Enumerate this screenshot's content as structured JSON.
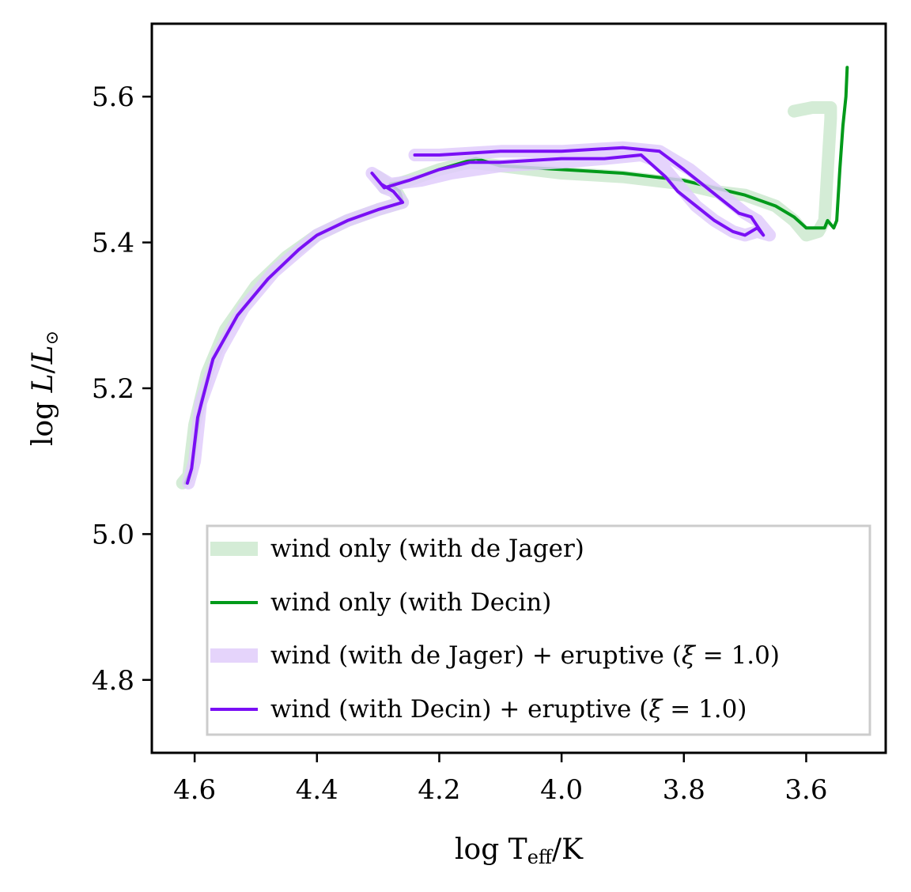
{
  "chart_data": {
    "type": "line",
    "xlabel": "log T_eff/K",
    "ylabel": "log L/L_sun",
    "xlim": [
      4.67,
      3.47
    ],
    "ylim": [
      4.7,
      5.7
    ],
    "x_inverted": true,
    "xticks": [
      4.6,
      4.4,
      4.2,
      4.0,
      3.8,
      3.6
    ],
    "xtick_labels": [
      "4.6",
      "4.4",
      "4.2",
      "4.0",
      "3.8",
      "3.6"
    ],
    "yticks": [
      4.8,
      5.0,
      5.2,
      5.4,
      5.6
    ],
    "ytick_labels": [
      "4.8",
      "5.0",
      "5.2",
      "5.4",
      "5.6"
    ],
    "legend_position": "lower-right",
    "series": [
      {
        "name": "wind only (with de Jager)",
        "color": "#cde9cf",
        "style": "thick",
        "points": [
          [
            4.62,
            5.07
          ],
          [
            4.61,
            5.08
          ],
          [
            4.6,
            5.15
          ],
          [
            4.58,
            5.22
          ],
          [
            4.55,
            5.28
          ],
          [
            4.5,
            5.34
          ],
          [
            4.45,
            5.38
          ],
          [
            4.4,
            5.41
          ],
          [
            4.35,
            5.43
          ],
          [
            4.3,
            5.445
          ],
          [
            4.26,
            5.455
          ],
          [
            4.27,
            5.47
          ],
          [
            4.3,
            5.49
          ],
          [
            4.29,
            5.475
          ],
          [
            4.25,
            5.485
          ],
          [
            4.2,
            5.5
          ],
          [
            4.15,
            5.51
          ],
          [
            4.1,
            5.505
          ],
          [
            4.0,
            5.495
          ],
          [
            3.9,
            5.49
          ],
          [
            3.85,
            5.485
          ],
          [
            3.8,
            5.48
          ],
          [
            3.75,
            5.47
          ],
          [
            3.7,
            5.465
          ],
          [
            3.65,
            5.45
          ],
          [
            3.62,
            5.43
          ],
          [
            3.6,
            5.41
          ],
          [
            3.58,
            5.415
          ],
          [
            3.57,
            5.43
          ],
          [
            3.565,
            5.5
          ],
          [
            3.56,
            5.57
          ],
          [
            3.56,
            5.585
          ],
          [
            3.59,
            5.585
          ],
          [
            3.62,
            5.58
          ]
        ]
      },
      {
        "name": "wind only (with Decin)",
        "color": "#009a1a",
        "style": "thin",
        "points": [
          [
            4.615,
            5.07
          ],
          [
            4.605,
            5.09
          ],
          [
            4.59,
            5.18
          ],
          [
            4.57,
            5.24
          ],
          [
            4.53,
            5.3
          ],
          [
            4.48,
            5.35
          ],
          [
            4.43,
            5.39
          ],
          [
            4.4,
            5.41
          ],
          [
            4.35,
            5.43
          ],
          [
            4.3,
            5.445
          ],
          [
            4.26,
            5.455
          ],
          [
            4.265,
            5.47
          ],
          [
            4.28,
            5.48
          ],
          [
            4.25,
            5.485
          ],
          [
            4.2,
            5.5
          ],
          [
            4.14,
            5.515
          ],
          [
            4.1,
            5.505
          ],
          [
            4.0,
            5.5
          ],
          [
            3.9,
            5.495
          ],
          [
            3.8,
            5.485
          ],
          [
            3.75,
            5.475
          ],
          [
            3.7,
            5.465
          ],
          [
            3.65,
            5.45
          ],
          [
            3.62,
            5.435
          ],
          [
            3.6,
            5.42
          ],
          [
            3.57,
            5.42
          ],
          [
            3.565,
            5.43
          ],
          [
            3.555,
            5.42
          ],
          [
            3.55,
            5.43
          ],
          [
            3.545,
            5.5
          ],
          [
            3.54,
            5.56
          ],
          [
            3.535,
            5.6
          ],
          [
            3.533,
            5.64
          ]
        ]
      },
      {
        "name": "wind (with de Jager) + eruptive (ξ = 1.0)",
        "color": "#e1cdfb",
        "style": "thick",
        "points": [
          [
            4.61,
            5.07
          ],
          [
            4.6,
            5.1
          ],
          [
            4.59,
            5.18
          ],
          [
            4.56,
            5.25
          ],
          [
            4.52,
            5.31
          ],
          [
            4.47,
            5.36
          ],
          [
            4.4,
            5.41
          ],
          [
            4.35,
            5.43
          ],
          [
            4.3,
            5.445
          ],
          [
            4.26,
            5.455
          ],
          [
            4.275,
            5.47
          ],
          [
            4.29,
            5.475
          ],
          [
            4.31,
            5.495
          ],
          [
            4.28,
            5.48
          ],
          [
            4.23,
            5.485
          ],
          [
            4.18,
            5.495
          ],
          [
            4.1,
            5.505
          ],
          [
            4.0,
            5.51
          ],
          [
            3.93,
            5.515
          ],
          [
            3.87,
            5.52
          ],
          [
            3.84,
            5.51
          ],
          [
            3.82,
            5.49
          ],
          [
            3.8,
            5.47
          ],
          [
            3.78,
            5.45
          ],
          [
            3.75,
            5.43
          ],
          [
            3.72,
            5.415
          ],
          [
            3.7,
            5.41
          ],
          [
            3.68,
            5.415
          ],
          [
            3.66,
            5.41
          ],
          [
            3.68,
            5.43
          ],
          [
            3.7,
            5.44
          ],
          [
            3.73,
            5.46
          ],
          [
            3.76,
            5.48
          ],
          [
            3.79,
            5.5
          ],
          [
            3.84,
            5.525
          ],
          [
            3.9,
            5.53
          ],
          [
            4.0,
            5.525
          ],
          [
            4.1,
            5.525
          ],
          [
            4.2,
            5.52
          ],
          [
            4.24,
            5.52
          ]
        ]
      },
      {
        "name": "wind (with Decin) + eruptive (ξ = 1.0)",
        "color": "#7a0ff5",
        "style": "thin",
        "points": [
          [
            4.612,
            5.07
          ],
          [
            4.605,
            5.09
          ],
          [
            4.595,
            5.16
          ],
          [
            4.57,
            5.24
          ],
          [
            4.53,
            5.3
          ],
          [
            4.48,
            5.35
          ],
          [
            4.43,
            5.39
          ],
          [
            4.4,
            5.41
          ],
          [
            4.35,
            5.43
          ],
          [
            4.3,
            5.445
          ],
          [
            4.26,
            5.455
          ],
          [
            4.275,
            5.47
          ],
          [
            4.295,
            5.48
          ],
          [
            4.31,
            5.495
          ],
          [
            4.29,
            5.475
          ],
          [
            4.25,
            5.485
          ],
          [
            4.2,
            5.5
          ],
          [
            4.15,
            5.51
          ],
          [
            4.1,
            5.51
          ],
          [
            4.0,
            5.515
          ],
          [
            3.93,
            5.515
          ],
          [
            3.87,
            5.52
          ],
          [
            3.85,
            5.505
          ],
          [
            3.83,
            5.49
          ],
          [
            3.81,
            5.47
          ],
          [
            3.78,
            5.45
          ],
          [
            3.75,
            5.43
          ],
          [
            3.72,
            5.415
          ],
          [
            3.7,
            5.41
          ],
          [
            3.68,
            5.42
          ],
          [
            3.67,
            5.41
          ],
          [
            3.69,
            5.435
          ],
          [
            3.71,
            5.44
          ],
          [
            3.74,
            5.46
          ],
          [
            3.77,
            5.48
          ],
          [
            3.8,
            5.5
          ],
          [
            3.84,
            5.525
          ],
          [
            3.9,
            5.53
          ],
          [
            4.0,
            5.525
          ],
          [
            4.1,
            5.525
          ],
          [
            4.2,
            5.52
          ],
          [
            4.24,
            5.52
          ]
        ]
      }
    ]
  }
}
